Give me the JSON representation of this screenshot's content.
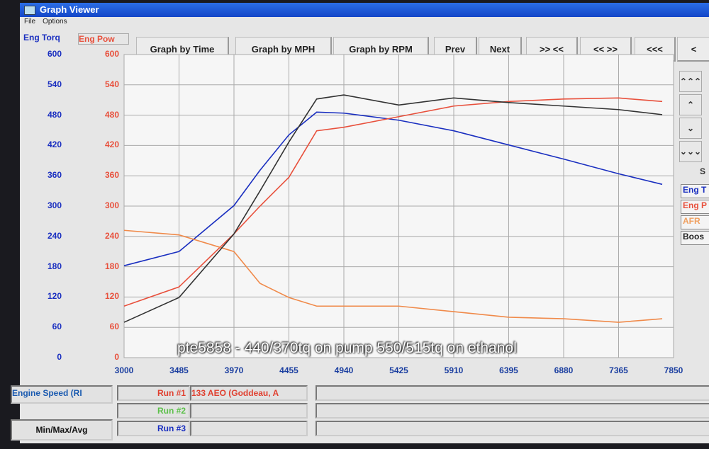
{
  "window": {
    "title": "Graph Viewer",
    "menu": [
      "File",
      "Options"
    ]
  },
  "axes": {
    "left1_label": "Eng Torq",
    "left2_label": "Eng Pow",
    "left_ticks": [
      "600",
      "540",
      "480",
      "420",
      "360",
      "300",
      "240",
      "180",
      "120",
      "60",
      "0"
    ],
    "x_ticks": [
      "3000",
      "3485",
      "3970",
      "4455",
      "4940",
      "5425",
      "5910",
      "6395",
      "6880",
      "7365",
      "7850"
    ]
  },
  "buttons": [
    "Graph by Time",
    "Graph by MPH",
    "Graph by RPM",
    "Prev",
    "Next",
    ">> <<",
    "<< >>",
    "<<<",
    "<"
  ],
  "side_buttons": [
    "⌃⌃⌃",
    "⌃",
    "⌄",
    "⌄⌄⌄"
  ],
  "side_label": "S",
  "legend": [
    {
      "label": "Eng T",
      "color": "#1a2fc0"
    },
    {
      "label": "Eng P",
      "color": "#e8503c"
    },
    {
      "label": "AFR",
      "color": "#f0a060"
    },
    {
      "label": "Boos",
      "color": "#222222"
    }
  ],
  "bottom": {
    "x_channel": "Engine Speed (RI",
    "minmax": "Min/Max/Avg",
    "runs": [
      {
        "label": "Run #1",
        "name": "133 AEO (Goddeau, A",
        "color": "#e04030"
      },
      {
        "label": "Run #2",
        "name": "",
        "color": "#5cc04a"
      },
      {
        "label": "Run #3",
        "name": "",
        "color": "#1a2fc0"
      }
    ]
  },
  "caption": "pte5858 - 440/370tq on pump 550/515tq on ethanol",
  "chart_data": {
    "type": "line",
    "xlim": [
      3000,
      7850
    ],
    "ylim": [
      0,
      600
    ],
    "grid": true,
    "x": [
      3000,
      3485,
      3970,
      4200,
      4455,
      4700,
      4940,
      5425,
      5910,
      6395,
      6880,
      7365,
      7750
    ],
    "series": [
      {
        "name": "Eng Torq",
        "color": "#1a2fc0",
        "values": [
          182,
          210,
          301,
          371,
          441,
          486,
          484,
          470,
          449,
          421,
          393,
          364,
          343
        ]
      },
      {
        "name": "Eng Pow",
        "color": "#e8503c",
        "values": [
          102,
          140,
          245,
          300,
          357,
          449,
          456,
          477,
          498,
          507,
          512,
          514,
          507
        ]
      },
      {
        "name": "AFR",
        "color": "#f08a4a",
        "values": [
          252,
          243,
          210,
          147,
          119,
          102,
          102,
          102,
          91,
          80,
          77,
          70,
          77
        ]
      },
      {
        "name": "Boost",
        "color": "#333333",
        "values": [
          70,
          119,
          245,
          330,
          427,
          512,
          520,
          500,
          514,
          505,
          498,
          491,
          481
        ]
      }
    ]
  }
}
